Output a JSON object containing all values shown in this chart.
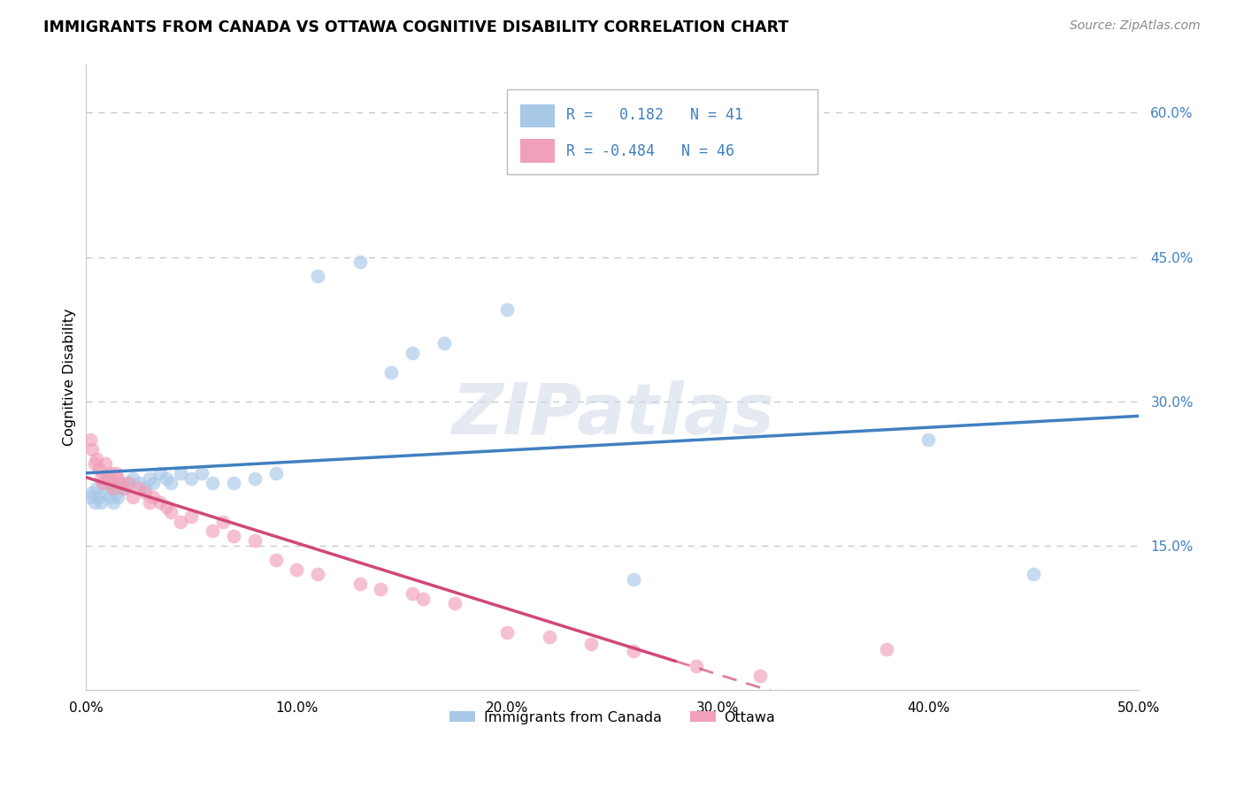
{
  "title": "IMMIGRANTS FROM CANADA VS OTTAWA COGNITIVE DISABILITY CORRELATION CHART",
  "source": "Source: ZipAtlas.com",
  "ylabel": "Cognitive Disability",
  "xlim": [
    0.0,
    0.5
  ],
  "ylim": [
    0.0,
    0.65
  ],
  "xticks": [
    0.0,
    0.1,
    0.2,
    0.3,
    0.4,
    0.5
  ],
  "yticks_right": [
    0.15,
    0.3,
    0.45,
    0.6
  ],
  "ytick_labels_right": [
    "15.0%",
    "30.0%",
    "45.0%",
    "60.0%"
  ],
  "xtick_labels": [
    "0.0%",
    "10.0%",
    "20.0%",
    "30.0%",
    "40.0%",
    "50.0%"
  ],
  "grid_color": "#c8c8c8",
  "background_color": "#ffffff",
  "watermark": "ZIPatlas",
  "legend_R1": "0.182",
  "legend_N1": "41",
  "legend_R2": "-0.484",
  "legend_N2": "46",
  "color_blue": "#a8c8e8",
  "color_pink": "#f0a0b8",
  "color_blue_line": "#4080c0",
  "color_pink_line": "#d04878",
  "legend_label1": "Immigrants from Canada",
  "legend_label2": "Ottawa",
  "blue_x": [
    0.002,
    0.003,
    0.004,
    0.005,
    0.006,
    0.007,
    0.008,
    0.009,
    0.01,
    0.011,
    0.012,
    0.013,
    0.014,
    0.015,
    0.016,
    0.018,
    0.02,
    0.022,
    0.025,
    0.028,
    0.03,
    0.032,
    0.035,
    0.038,
    0.04,
    0.045,
    0.05,
    0.055,
    0.06,
    0.07,
    0.08,
    0.09,
    0.11,
    0.13,
    0.145,
    0.155,
    0.17,
    0.2,
    0.26,
    0.4,
    0.45
  ],
  "blue_y": [
    0.2,
    0.205,
    0.195,
    0.21,
    0.2,
    0.195,
    0.215,
    0.205,
    0.22,
    0.2,
    0.21,
    0.195,
    0.205,
    0.2,
    0.215,
    0.21,
    0.215,
    0.22,
    0.215,
    0.21,
    0.22,
    0.215,
    0.225,
    0.22,
    0.215,
    0.225,
    0.22,
    0.225,
    0.215,
    0.215,
    0.22,
    0.225,
    0.43,
    0.445,
    0.33,
    0.35,
    0.36,
    0.395,
    0.115,
    0.26,
    0.12
  ],
  "pink_x": [
    0.002,
    0.003,
    0.004,
    0.005,
    0.006,
    0.007,
    0.008,
    0.009,
    0.01,
    0.011,
    0.012,
    0.013,
    0.014,
    0.015,
    0.016,
    0.018,
    0.02,
    0.022,
    0.025,
    0.028,
    0.03,
    0.032,
    0.035,
    0.038,
    0.04,
    0.045,
    0.05,
    0.06,
    0.065,
    0.07,
    0.08,
    0.09,
    0.1,
    0.11,
    0.13,
    0.14,
    0.155,
    0.16,
    0.175,
    0.2,
    0.22,
    0.24,
    0.26,
    0.29,
    0.32,
    0.38
  ],
  "pink_y": [
    0.26,
    0.25,
    0.235,
    0.24,
    0.23,
    0.22,
    0.215,
    0.235,
    0.22,
    0.225,
    0.215,
    0.21,
    0.225,
    0.22,
    0.215,
    0.21,
    0.215,
    0.2,
    0.21,
    0.205,
    0.195,
    0.2,
    0.195,
    0.19,
    0.185,
    0.175,
    0.18,
    0.165,
    0.175,
    0.16,
    0.155,
    0.135,
    0.125,
    0.12,
    0.11,
    0.105,
    0.1,
    0.095,
    0.09,
    0.06,
    0.055,
    0.048,
    0.04,
    0.025,
    0.015,
    0.042
  ]
}
